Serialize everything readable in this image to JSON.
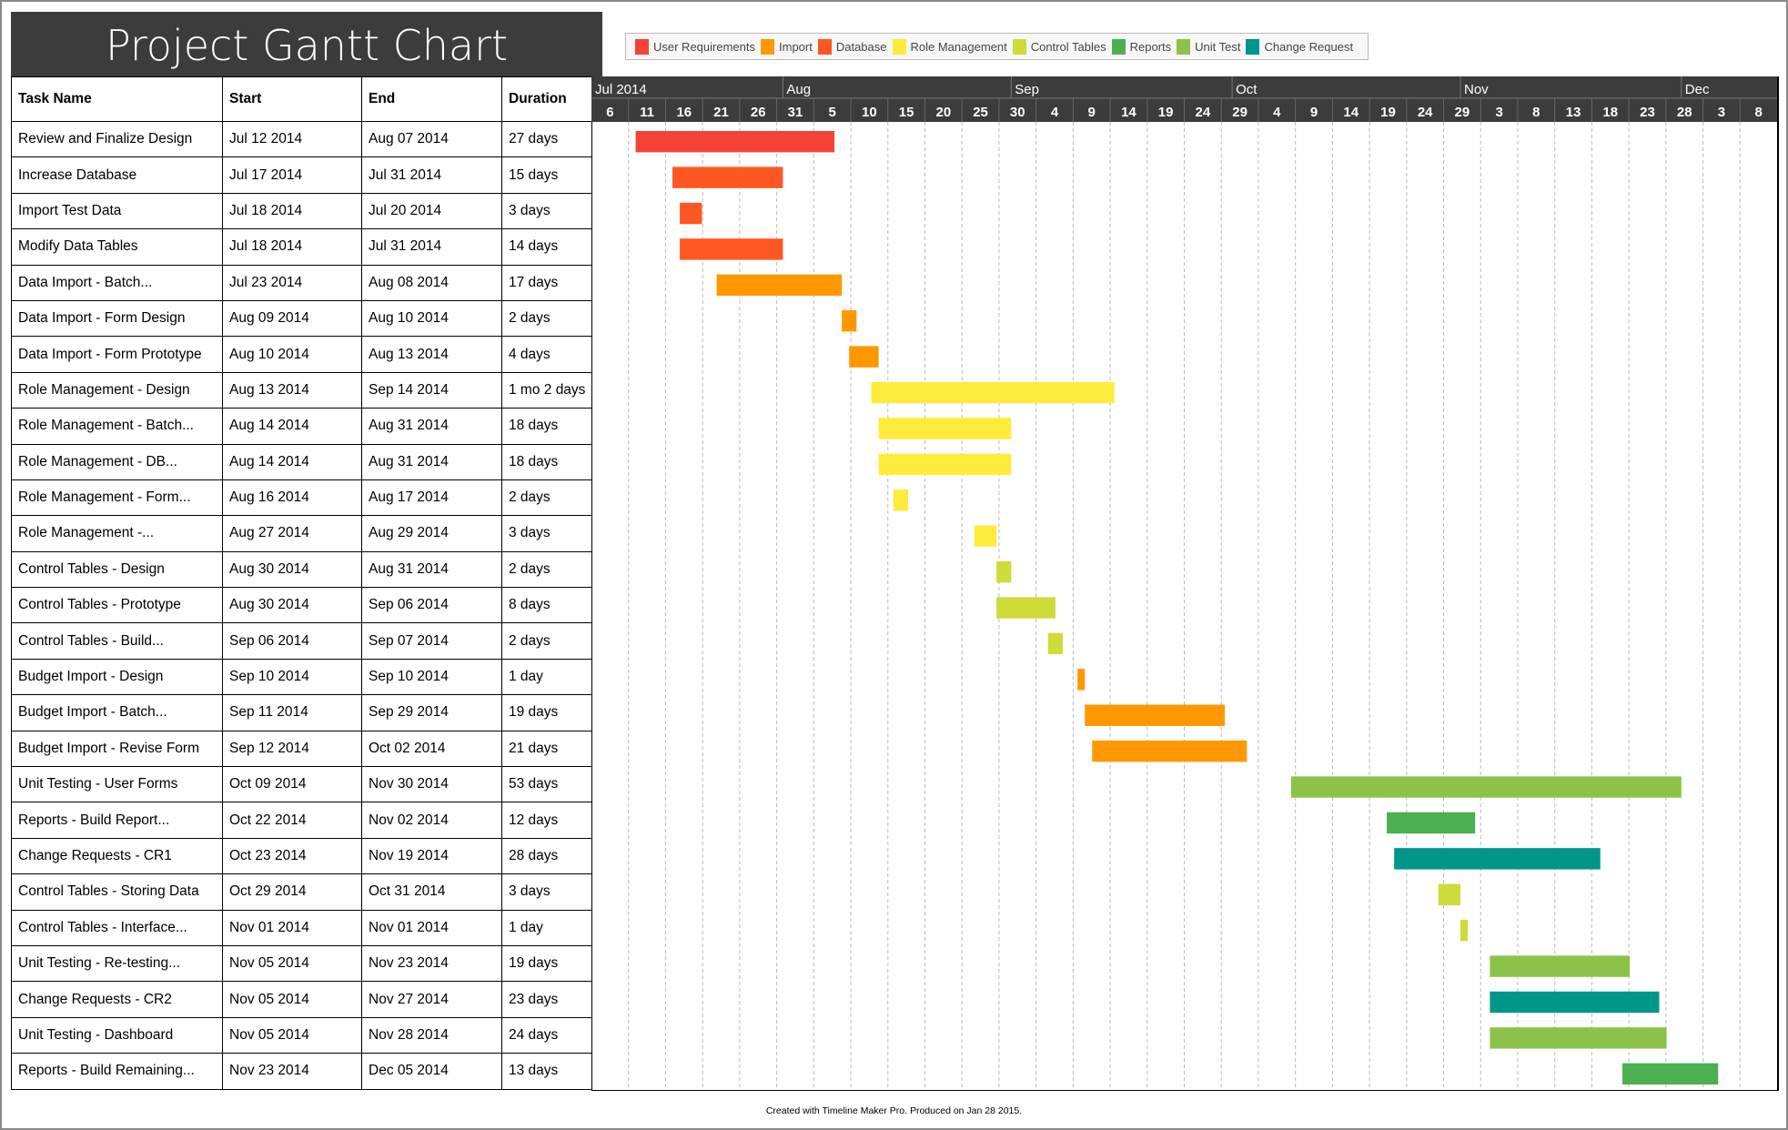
{
  "chart_data": {
    "type": "gantt",
    "title": "Project Gantt Chart",
    "columns": [
      "Task Name",
      "Start",
      "End",
      "Duration"
    ],
    "axis": {
      "start": "2014-07-06",
      "end": "2014-12-13",
      "months": [
        {
          "label": "Jul 2014",
          "date": "2014-07-06"
        },
        {
          "label": "Aug",
          "date": "2014-08-01"
        },
        {
          "label": "Sep",
          "date": "2014-09-01"
        },
        {
          "label": "Oct",
          "date": "2014-10-01"
        },
        {
          "label": "Nov",
          "date": "2014-11-01"
        },
        {
          "label": "Dec",
          "date": "2014-12-01"
        }
      ],
      "day_ticks": [
        "6",
        "11",
        "16",
        "21",
        "26",
        "31",
        "5",
        "10",
        "15",
        "20",
        "25",
        "30",
        "4",
        "9",
        "14",
        "19",
        "24",
        "29",
        "4",
        "9",
        "14",
        "19",
        "24",
        "29",
        "3",
        "8",
        "13",
        "18",
        "23",
        "28",
        "3",
        "8"
      ],
      "tick_interval_days": 5,
      "grid": true
    },
    "legend": [
      {
        "name": "User Requirements",
        "color": "#f44336"
      },
      {
        "name": "Import",
        "color": "#ff9800"
      },
      {
        "name": "Database",
        "color": "#ff5722"
      },
      {
        "name": "Role Management",
        "color": "#ffeb3b"
      },
      {
        "name": "Control Tables",
        "color": "#cddc39"
      },
      {
        "name": "Reports",
        "color": "#4caf50"
      },
      {
        "name": "Unit Test",
        "color": "#8bc34a"
      },
      {
        "name": "Change Request",
        "color": "#009688"
      }
    ],
    "tasks": [
      {
        "name": "Review and Finalize Design",
        "start_label": "Jul 12 2014",
        "end_label": "Aug 07 2014",
        "duration": "27 days",
        "start": "2014-07-12",
        "end": "2014-08-07",
        "category": 0
      },
      {
        "name": "Increase Database",
        "start_label": "Jul 17 2014",
        "end_label": "Jul 31 2014",
        "duration": "15 days",
        "start": "2014-07-17",
        "end": "2014-07-31",
        "category": 2
      },
      {
        "name": "Import Test Data",
        "start_label": "Jul 18 2014",
        "end_label": "Jul 20 2014",
        "duration": "3 days",
        "start": "2014-07-18",
        "end": "2014-07-20",
        "category": 2
      },
      {
        "name": "Modify Data Tables",
        "start_label": "Jul 18 2014",
        "end_label": "Jul 31 2014",
        "duration": "14 days",
        "start": "2014-07-18",
        "end": "2014-07-31",
        "category": 2
      },
      {
        "name": "Data Import - Batch...",
        "start_label": "Jul 23 2014",
        "end_label": "Aug 08 2014",
        "duration": "17 days",
        "start": "2014-07-23",
        "end": "2014-08-08",
        "category": 1
      },
      {
        "name": "Data Import - Form Design",
        "start_label": "Aug 09 2014",
        "end_label": "Aug 10 2014",
        "duration": "2 days",
        "start": "2014-08-09",
        "end": "2014-08-10",
        "category": 1
      },
      {
        "name": "Data Import - Form Prototype",
        "start_label": "Aug 10 2014",
        "end_label": "Aug 13 2014",
        "duration": "4 days",
        "start": "2014-08-10",
        "end": "2014-08-13",
        "category": 1
      },
      {
        "name": "Role Management - Design",
        "start_label": "Aug 13 2014",
        "end_label": "Sep 14 2014",
        "duration": "1 mo 2 days",
        "start": "2014-08-13",
        "end": "2014-09-14",
        "category": 3
      },
      {
        "name": "Role Management - Batch...",
        "start_label": "Aug 14 2014",
        "end_label": "Aug 31 2014",
        "duration": "18 days",
        "start": "2014-08-14",
        "end": "2014-08-31",
        "category": 3
      },
      {
        "name": "Role Management - DB...",
        "start_label": "Aug 14 2014",
        "end_label": "Aug 31 2014",
        "duration": "18 days",
        "start": "2014-08-14",
        "end": "2014-08-31",
        "category": 3
      },
      {
        "name": "Role Management - Form...",
        "start_label": "Aug 16 2014",
        "end_label": "Aug 17 2014",
        "duration": "2 days",
        "start": "2014-08-16",
        "end": "2014-08-17",
        "category": 3
      },
      {
        "name": "Role Management -...",
        "start_label": "Aug 27 2014",
        "end_label": "Aug 29 2014",
        "duration": "3 days",
        "start": "2014-08-27",
        "end": "2014-08-29",
        "category": 3
      },
      {
        "name": "Control Tables - Design",
        "start_label": "Aug 30 2014",
        "end_label": "Aug 31 2014",
        "duration": "2 days",
        "start": "2014-08-30",
        "end": "2014-08-31",
        "category": 4
      },
      {
        "name": "Control Tables - Prototype",
        "start_label": "Aug 30 2014",
        "end_label": "Sep 06 2014",
        "duration": "8 days",
        "start": "2014-08-30",
        "end": "2014-09-06",
        "category": 4
      },
      {
        "name": "Control Tables - Build...",
        "start_label": "Sep 06 2014",
        "end_label": "Sep 07 2014",
        "duration": "2 days",
        "start": "2014-09-06",
        "end": "2014-09-07",
        "category": 4
      },
      {
        "name": "Budget Import - Design",
        "start_label": "Sep 10 2014",
        "end_label": "Sep 10 2014",
        "duration": "1 day",
        "start": "2014-09-10",
        "end": "2014-09-10",
        "category": 1
      },
      {
        "name": "Budget Import  - Batch...",
        "start_label": "Sep 11 2014",
        "end_label": "Sep 29 2014",
        "duration": "19 days",
        "start": "2014-09-11",
        "end": "2014-09-29",
        "category": 1
      },
      {
        "name": "Budget Import - Revise Form",
        "start_label": "Sep 12 2014",
        "end_label": "Oct 02 2014",
        "duration": "21 days",
        "start": "2014-09-12",
        "end": "2014-10-02",
        "category": 1
      },
      {
        "name": "Unit Testing - User Forms",
        "start_label": "Oct 09 2014",
        "end_label": "Nov 30 2014",
        "duration": "53 days",
        "start": "2014-10-09",
        "end": "2014-11-30",
        "category": 6
      },
      {
        "name": "Reports - Build Report...",
        "start_label": "Oct 22 2014",
        "end_label": "Nov 02 2014",
        "duration": "12 days",
        "start": "2014-10-22",
        "end": "2014-11-02",
        "category": 5
      },
      {
        "name": "Change Requests - CR1",
        "start_label": "Oct 23 2014",
        "end_label": "Nov 19 2014",
        "duration": "28 days",
        "start": "2014-10-23",
        "end": "2014-11-19",
        "category": 7
      },
      {
        "name": "Control Tables - Storing Data",
        "start_label": "Oct 29 2014",
        "end_label": "Oct 31 2014",
        "duration": "3 days",
        "start": "2014-10-29",
        "end": "2014-10-31",
        "category": 4
      },
      {
        "name": "Control Tables - Interface...",
        "start_label": "Nov 01 2014",
        "end_label": "Nov 01 2014",
        "duration": "1 day",
        "start": "2014-11-01",
        "end": "2014-11-01",
        "category": 4
      },
      {
        "name": "Unit Testing - Re-testing...",
        "start_label": "Nov 05 2014",
        "end_label": "Nov 23 2014",
        "duration": "19 days",
        "start": "2014-11-05",
        "end": "2014-11-23",
        "category": 6
      },
      {
        "name": "Change Requests - CR2",
        "start_label": "Nov 05 2014",
        "end_label": "Nov 27 2014",
        "duration": "23 days",
        "start": "2014-11-05",
        "end": "2014-11-27",
        "category": 7
      },
      {
        "name": "Unit Testing - Dashboard",
        "start_label": "Nov 05 2014",
        "end_label": "Nov 28 2014",
        "duration": "24 days",
        "start": "2014-11-05",
        "end": "2014-11-28",
        "category": 6
      },
      {
        "name": "Reports - Build Remaining...",
        "start_label": "Nov 23 2014",
        "end_label": "Dec 05 2014",
        "duration": "13 days",
        "start": "2014-11-23",
        "end": "2014-12-05",
        "category": 5
      }
    ]
  },
  "footer": "Created with Timeline Maker Pro. Produced on Jan 28 2015."
}
